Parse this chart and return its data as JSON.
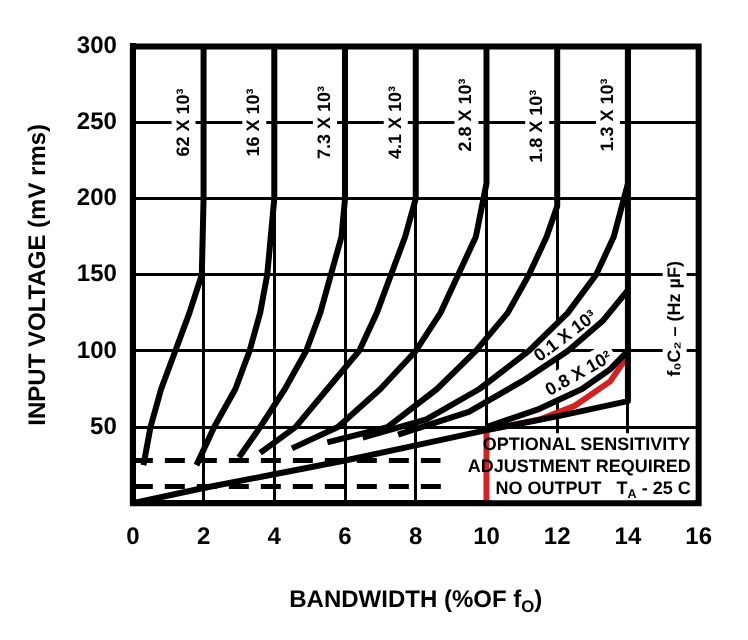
{
  "chart_data": {
    "type": "line",
    "xlabel": "BANDWIDTH (%OF f$_{O}$)",
    "ylabel": "INPUT VOLTAGE (mV rms)",
    "xlim": [
      0,
      16
    ],
    "xticks": [
      0,
      2,
      4,
      6,
      8,
      10,
      12,
      14,
      16
    ],
    "ylim": [
      0,
      300
    ],
    "yticks": [
      50,
      100,
      150,
      200,
      250,
      300
    ],
    "grid": true,
    "legend": false,
    "marker": "none",
    "series": [
      {
        "name": "62 X 10³",
        "color": "#000000",
        "x": [
          0.3,
          0.5,
          0.8,
          1.2,
          1.6,
          1.95,
          2,
          2
        ],
        "values": [
          25,
          50,
          75,
          100,
          125,
          150,
          200,
          300
        ]
      },
      {
        "name": "16 X 10³",
        "color": "#000000",
        "x": [
          1.8,
          2.3,
          2.9,
          3.3,
          3.6,
          3.8,
          4,
          4
        ],
        "values": [
          25,
          50,
          75,
          100,
          125,
          150,
          200,
          300
        ]
      },
      {
        "name": "7.3 X 10³",
        "color": "#000000",
        "x": [
          3.0,
          3.6,
          4.3,
          4.9,
          5.3,
          5.6,
          5.9,
          6,
          6
        ],
        "values": [
          30,
          50,
          75,
          100,
          125,
          150,
          175,
          200,
          300
        ]
      },
      {
        "name": "4.1 X 10³",
        "color": "#000000",
        "x": [
          3.6,
          4.6,
          5.5,
          6.4,
          6.9,
          7.3,
          7.7,
          8,
          8
        ],
        "values": [
          33,
          50,
          75,
          100,
          125,
          150,
          175,
          200,
          300
        ]
      },
      {
        "name": "2.8 X 10³",
        "color": "#000000",
        "x": [
          4.5,
          5.8,
          7,
          8,
          8.7,
          9.2,
          9.7,
          10,
          10
        ],
        "values": [
          36,
          50,
          75,
          100,
          125,
          150,
          175,
          210,
          300
        ]
      },
      {
        "name": "1.8 X 10³",
        "color": "#000000",
        "x": [
          5.5,
          7.2,
          8.6,
          9.7,
          10.6,
          11.2,
          11.7,
          12,
          12
        ],
        "values": [
          40,
          50,
          75,
          100,
          125,
          150,
          175,
          195,
          300
        ]
      },
      {
        "name": "1.3 X 10³",
        "color": "#000000",
        "x": [
          6.5,
          8.3,
          9.8,
          11.2,
          12.3,
          13.1,
          13.6,
          14,
          14
        ],
        "values": [
          43,
          55,
          75,
          100,
          125,
          150,
          175,
          210,
          300
        ]
      },
      {
        "name": "0.1 X 10³",
        "color": "#000000",
        "x": [
          7.5,
          9.5,
          11,
          12.3,
          13.3,
          14
        ],
        "values": [
          45,
          60,
          80,
          100,
          120,
          140
        ]
      },
      {
        "name": "0.8 X 10²",
        "color": "#000000",
        "x": [
          10,
          11.5,
          12.7,
          13.5,
          14
        ],
        "values": [
          50,
          62,
          75,
          88,
          100
        ]
      },
      {
        "color": "#000000",
        "x": [
          0,
          2,
          4,
          6,
          8,
          10,
          12,
          14,
          14
        ],
        "values": [
          0,
          10,
          19,
          28,
          38,
          48,
          57,
          67,
          300
        ]
      },
      {
        "color": "#d42020",
        "x": [
          10,
          10,
          11.5,
          12.5,
          13.5,
          14
        ],
        "values": [
          0,
          48,
          55,
          64,
          80,
          97
        ]
      },
      {
        "color": "#000000",
        "line_style": "dashed",
        "x": [
          0,
          8.7
        ],
        "values": [
          28,
          28
        ]
      },
      {
        "color": "#000000",
        "line_style": "dashed",
        "x": [
          0,
          8.9
        ],
        "values": [
          11,
          11
        ]
      }
    ],
    "annotations": [
      "f₀C₂ – (Hz µF)",
      "OPTIONAL SENSITIVITY",
      "ADJUSTMENT REQUIRED",
      "NO OUTPUT   T$_{A}$ - 25 C"
    ]
  }
}
